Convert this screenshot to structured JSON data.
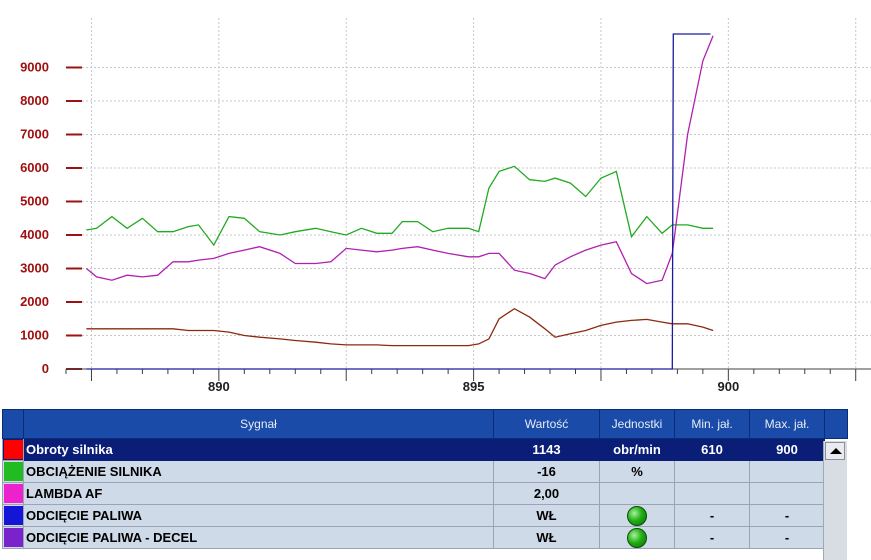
{
  "chart_data": {
    "type": "line",
    "title": "",
    "xlabel": "",
    "ylabel": "",
    "xlim": [
      887,
      902.8
    ],
    "ylim": [
      0,
      10000
    ],
    "xticks": [
      890,
      895,
      900
    ],
    "yticks": [
      0,
      1000,
      2000,
      3000,
      4000,
      5000,
      6000,
      7000,
      8000,
      9000
    ],
    "grid": true,
    "legend": "table-below",
    "series": [
      {
        "color": "#22aa22",
        "x": [
          887.4,
          887.6,
          887.9,
          888.2,
          888.5,
          888.8,
          889.1,
          889.4,
          889.6,
          889.9,
          890.2,
          890.5,
          890.8,
          891.2,
          891.5,
          891.9,
          892.2,
          892.5,
          892.8,
          893.1,
          893.4,
          893.6,
          893.9,
          894.2,
          894.5,
          894.9,
          895.1,
          895.3,
          895.5,
          895.8,
          896.1,
          896.4,
          896.6,
          896.9,
          897.2,
          897.5,
          897.8,
          898.1,
          898.4,
          898.7,
          898.9,
          899.2,
          899.5,
          899.7
        ],
        "values": [
          4150,
          4200,
          4550,
          4200,
          4500,
          4100,
          4100,
          4250,
          4300,
          3700,
          4550,
          4500,
          4100,
          4000,
          4100,
          4200,
          4100,
          4000,
          4200,
          4050,
          4050,
          4400,
          4400,
          4100,
          4200,
          4200,
          4100,
          5400,
          5900,
          6050,
          5650,
          5600,
          5700,
          5550,
          5150,
          5700,
          5900,
          3950,
          4550,
          4050,
          4300,
          4300,
          4200,
          4200
        ]
      },
      {
        "color": "#b020b0",
        "x": [
          887.4,
          887.6,
          887.9,
          888.2,
          888.5,
          888.8,
          889.1,
          889.4,
          889.6,
          889.9,
          890.2,
          890.5,
          890.8,
          891.2,
          891.5,
          891.9,
          892.2,
          892.5,
          892.8,
          893.1,
          893.4,
          893.6,
          893.9,
          894.2,
          894.5,
          894.9,
          895.1,
          895.3,
          895.5,
          895.8,
          896.1,
          896.4,
          896.6,
          896.9,
          897.2,
          897.5,
          897.8,
          898.1,
          898.4,
          898.7,
          898.9,
          899.2,
          899.5,
          899.7
        ],
        "values": [
          3000,
          2750,
          2650,
          2800,
          2750,
          2800,
          3200,
          3200,
          3250,
          3300,
          3450,
          3550,
          3650,
          3450,
          3150,
          3150,
          3200,
          3600,
          3550,
          3500,
          3550,
          3600,
          3650,
          3550,
          3450,
          3350,
          3350,
          3450,
          3450,
          2950,
          2850,
          2700,
          3100,
          3350,
          3550,
          3700,
          3800,
          2850,
          2550,
          2650,
          3450,
          7000,
          9200,
          9950
        ]
      },
      {
        "color": "#8a2a10",
        "x": [
          887.4,
          887.6,
          887.9,
          888.2,
          888.5,
          888.8,
          889.1,
          889.4,
          889.6,
          889.9,
          890.2,
          890.5,
          890.8,
          891.2,
          891.5,
          891.9,
          892.2,
          892.5,
          892.8,
          893.1,
          893.4,
          893.6,
          893.9,
          894.2,
          894.5,
          894.9,
          895.1,
          895.3,
          895.5,
          895.8,
          896.1,
          896.4,
          896.6,
          896.9,
          897.2,
          897.5,
          897.8,
          898.1,
          898.4,
          898.7,
          898.9,
          899.2,
          899.5,
          899.7
        ],
        "values": [
          1200,
          1200,
          1200,
          1200,
          1200,
          1200,
          1200,
          1150,
          1150,
          1150,
          1100,
          1000,
          950,
          900,
          850,
          800,
          750,
          720,
          720,
          720,
          700,
          700,
          700,
          700,
          700,
          700,
          750,
          900,
          1500,
          1800,
          1550,
          1200,
          950,
          1050,
          1150,
          1300,
          1400,
          1450,
          1480,
          1400,
          1350,
          1350,
          1250,
          1150
        ]
      },
      {
        "color": "#1a1aa0",
        "x": [
          887.4,
          889.0,
          891.0,
          893.0,
          895.0,
          897.0,
          898.9,
          898.92,
          898.95,
          899.6,
          899.62,
          899.65
        ],
        "values": [
          0,
          0,
          0,
          0,
          0,
          0,
          0,
          10000,
          10000,
          10000,
          10000,
          10000
        ]
      }
    ]
  },
  "table": {
    "headers": {
      "sygnal": "Sygnał",
      "wartosc": "Wartość",
      "jednostki": "Jednostki",
      "min": "Min. jał.",
      "max": "Max. jał."
    },
    "rows": [
      {
        "color": "#ff0000",
        "name": "Obroty silnika",
        "value": "1143",
        "unit": "obr/min",
        "min": "610",
        "max": "900"
      },
      {
        "color": "#22bb22",
        "name": "OBCIĄŻENIE SILNIKA",
        "value": "-16",
        "unit": "%",
        "min": "",
        "max": ""
      },
      {
        "color": "#ee22cc",
        "name": "LAMBDA AF",
        "value": "2,00",
        "unit": "",
        "min": "",
        "max": ""
      },
      {
        "color": "#1515d8",
        "name": "ODCIĘCIE PALIWA",
        "value": "WŁ",
        "unit": "",
        "min": "-",
        "max": "-"
      },
      {
        "color": "#7a22cc",
        "name": "ODCIĘCIE PALIWA - DECEL",
        "value": "WŁ",
        "unit": "",
        "min": "-",
        "max": "-"
      }
    ]
  }
}
